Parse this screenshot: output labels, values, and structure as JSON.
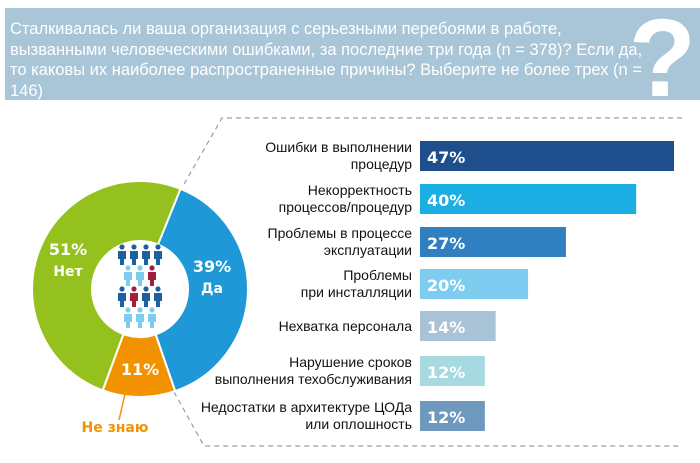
{
  "header": {
    "question": "Сталкивалась ли ваша организация с серьезными перебоями в работе, вызванными человеческими ошибками, за последние три года (n = 378)? Если да, то каковы их наиболее распространенные причины? Выберите не более трех (n = 146)",
    "icon": "question-mark-icon"
  },
  "chart_data": [
    {
      "type": "pie",
      "donut": true,
      "slices": [
        {
          "label": "Да",
          "value": 39,
          "value_label": "39%",
          "color": "#1e98d6"
        },
        {
          "label": "Не знаю",
          "value": 11,
          "value_label": "11%",
          "color": "#f39200"
        },
        {
          "label": "Нет",
          "value": 51,
          "value_label": "51%",
          "color": "#95c11f"
        }
      ],
      "center_icon": "people-icon"
    },
    {
      "type": "bar",
      "orientation": "horizontal",
      "unit": "%",
      "categories": [
        "Ошибки в выполнении\nпроцедур",
        "Некорректность\nпроцессов/процедур",
        "Проблемы в процессе\nэксплуатации",
        "Проблемы\nпри инсталляции",
        "Нехватка персонала",
        "Нарушение сроков\nвыполнения техобслуживания",
        "Недостатки в архитектуре ЦОДа\nили оплошность"
      ],
      "values": [
        47,
        40,
        27,
        20,
        14,
        12,
        12
      ],
      "value_labels": [
        "47%",
        "40%",
        "27%",
        "20%",
        "14%",
        "12%",
        "12%"
      ],
      "colors": [
        "#1e4f8c",
        "#1aaee3",
        "#2f7fc1",
        "#7ecdf0",
        "#a9c3d6",
        "#a6d9e0",
        "#6f98be"
      ]
    }
  ]
}
